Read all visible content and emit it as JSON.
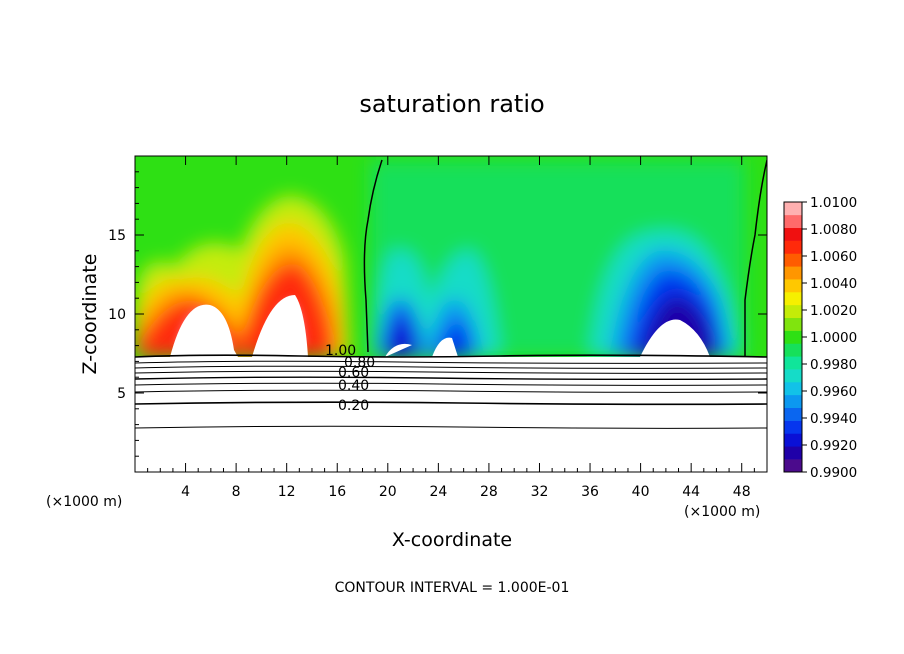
{
  "chart_data": {
    "type": "heatmap",
    "title": "saturation ratio",
    "xlabel": "X-coordinate",
    "ylabel": "Z-coordinate",
    "x_units_left": "(×1000 m)",
    "x_units_right": "(×1000 m)",
    "xlim": [
      0,
      50
    ],
    "ylim": [
      0,
      20
    ],
    "x_ticks": [
      4,
      8,
      12,
      16,
      20,
      24,
      28,
      32,
      36,
      40,
      44,
      48
    ],
    "x_tick_labels": [
      "4",
      "8",
      "12",
      "16",
      "20",
      "24",
      "28",
      "32",
      "36",
      "40",
      "44",
      "48"
    ],
    "y_ticks": [
      5,
      10,
      15
    ],
    "y_tick_labels": [
      "5",
      "10",
      "15"
    ],
    "grid": false,
    "colorbar": {
      "levels": [
        0.99,
        0.991,
        0.992,
        0.993,
        0.994,
        0.995,
        0.996,
        0.997,
        0.998,
        0.999,
        1.0,
        1.001,
        1.002,
        1.003,
        1.004,
        1.005,
        1.006,
        1.007,
        1.008,
        1.009,
        1.01
      ],
      "colors": [
        "#4b0b8c",
        "#1f00a8",
        "#0a10d6",
        "#0636ee",
        "#0a66f0",
        "#0c98f0",
        "#12c2e8",
        "#15dcc8",
        "#10e59a",
        "#16e05a",
        "#2ee014",
        "#80e40e",
        "#c4ec08",
        "#f6f000",
        "#ffc800",
        "#ff9600",
        "#ff5c00",
        "#ff2a0a",
        "#f01010",
        "#ff6a6a",
        "#ffb0b0"
      ],
      "tick_labels": [
        "0.9900",
        "0.9920",
        "0.9940",
        "0.9960",
        "0.9980",
        "1.0000",
        "1.0020",
        "1.0040",
        "1.0060",
        "1.0080",
        "1.0100"
      ]
    },
    "contour_labels": [
      "1.00",
      "0.80",
      "0.60",
      "0.40",
      "0.20"
    ],
    "contour_interval_text": "CONTOUR INTERVAL = 1.000E-01"
  }
}
